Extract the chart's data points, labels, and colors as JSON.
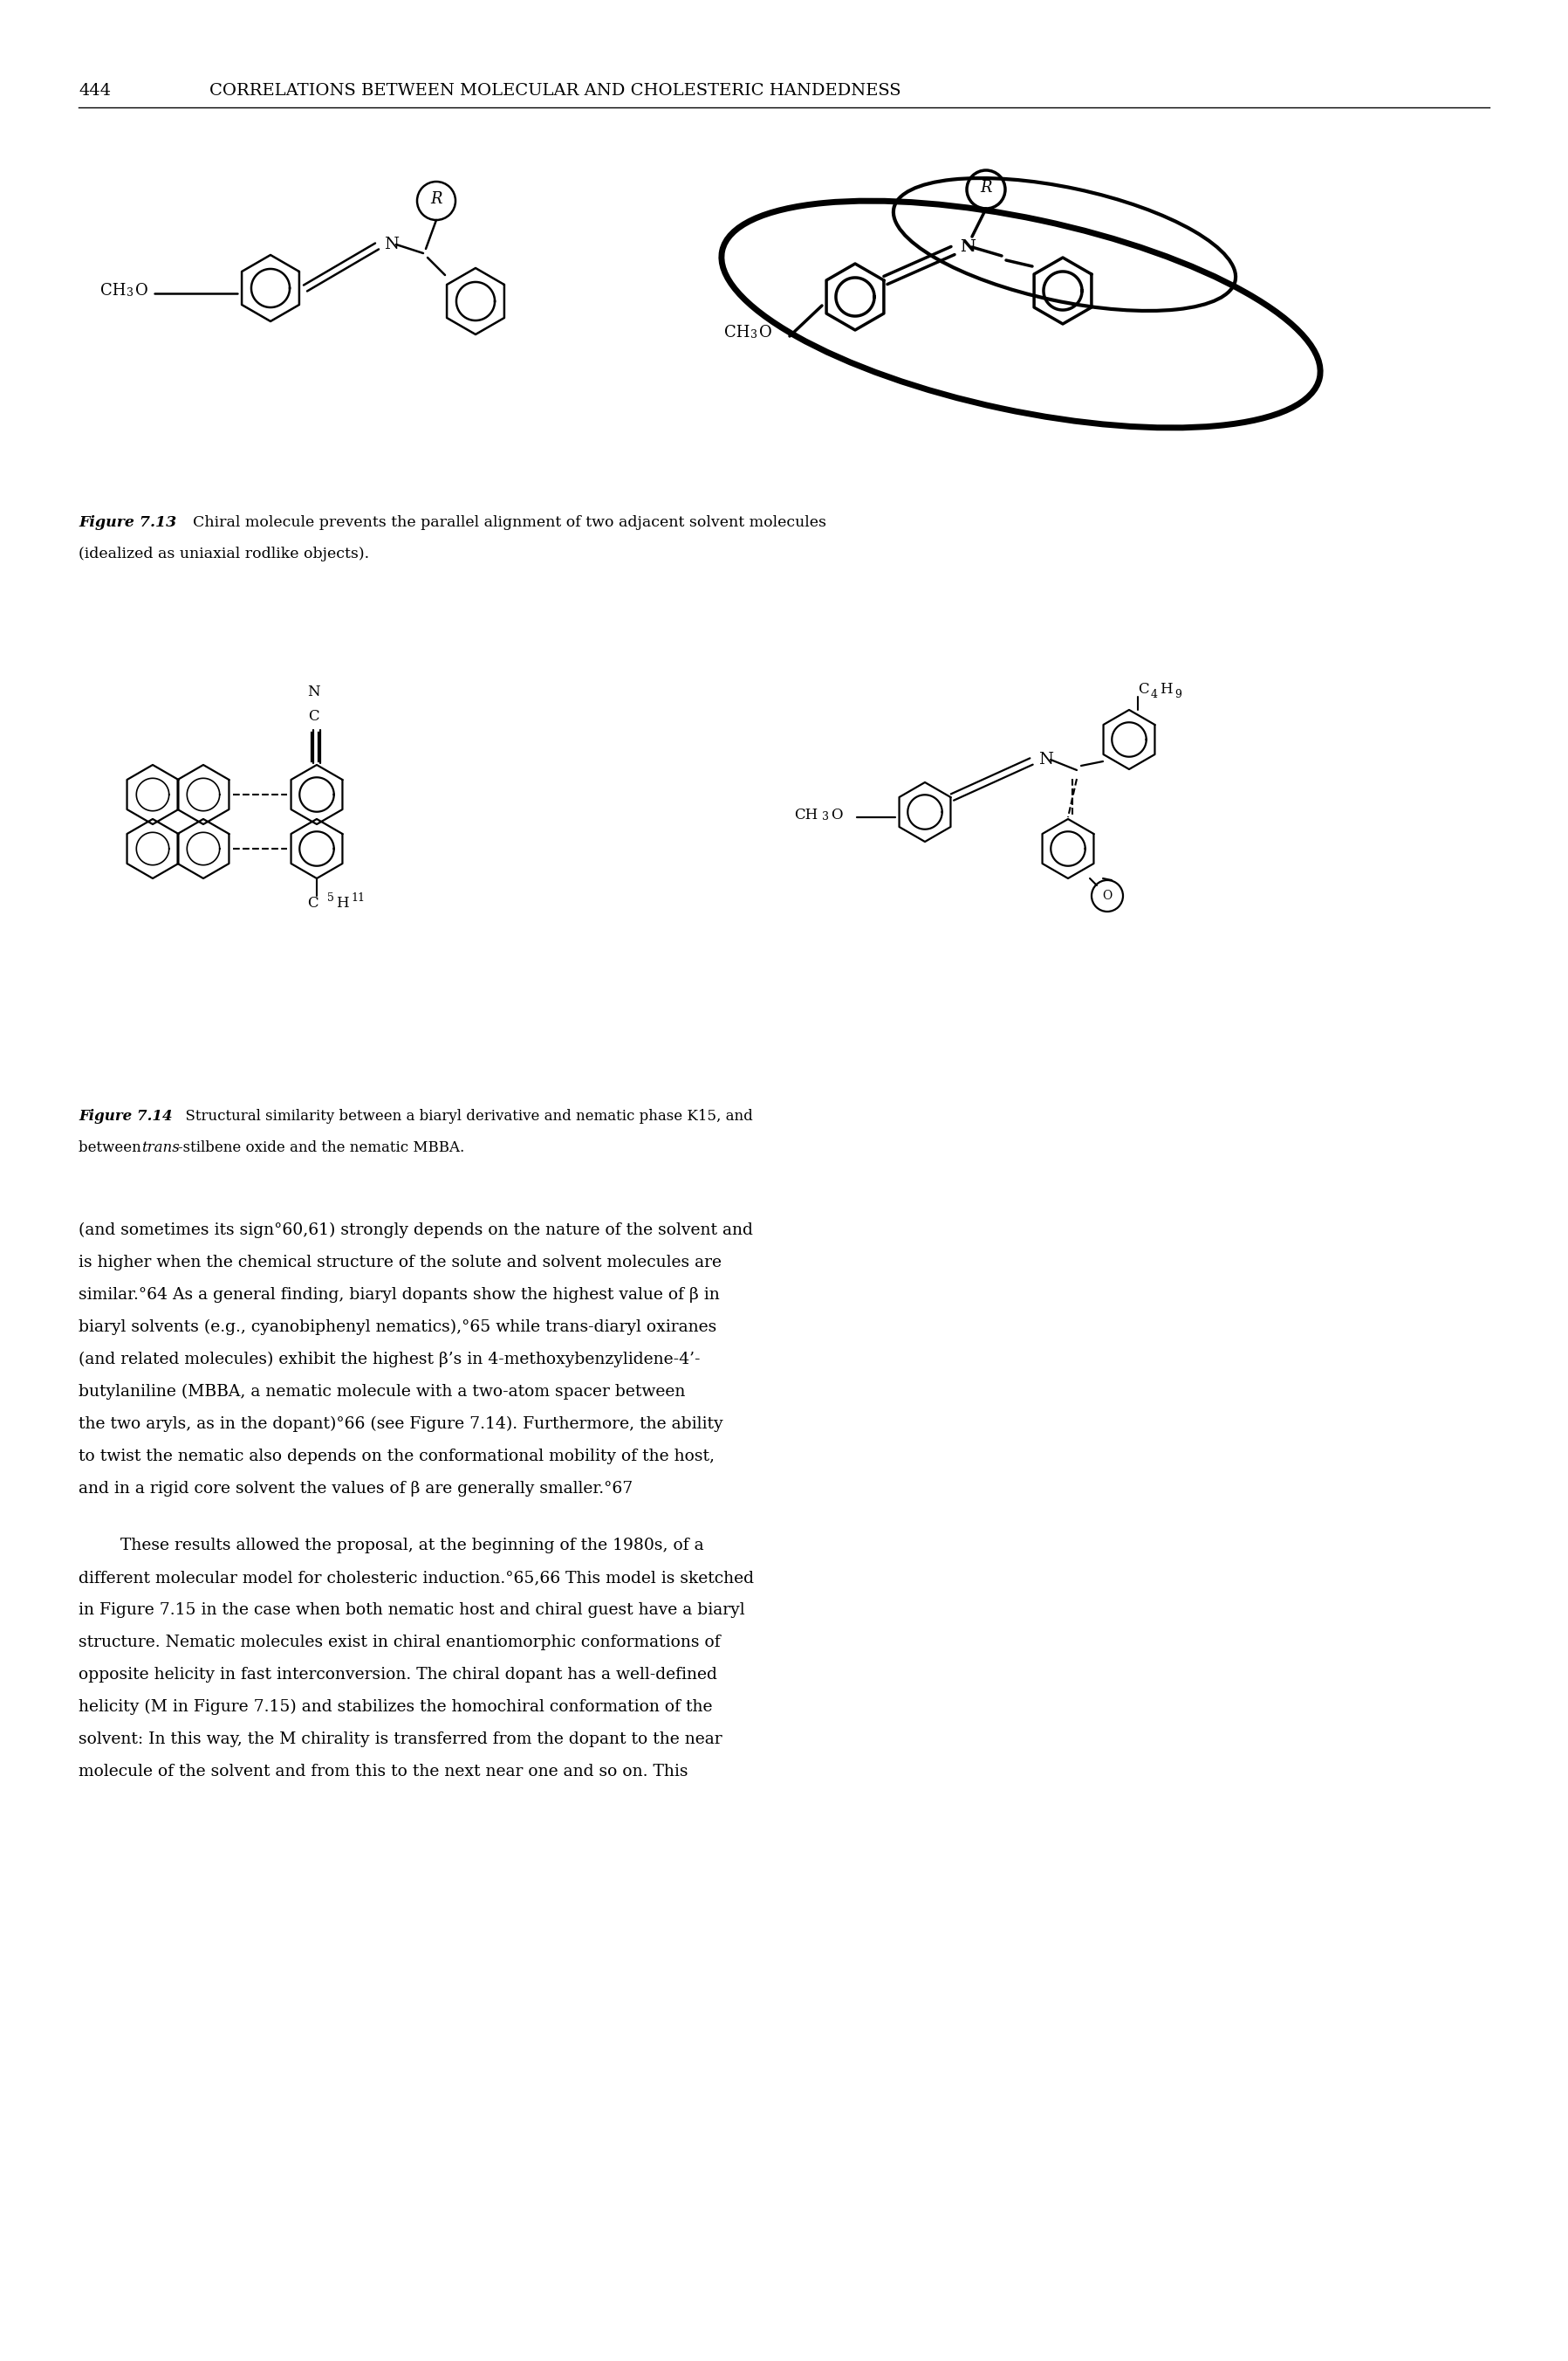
{
  "page_number": "444",
  "header": "CORRELATIONS BETWEEN MOLECULAR AND CHOLESTERIC HANDEDNESS",
  "fig13_caption_italic": "Figure 7.13",
  "fig13_caption_normal": "  Chiral molecule prevents the parallel alignment of two adjacent solvent molecules",
  "fig13_caption_line2": "(idealized as uniaxial rodlike objects).",
  "fig14_caption_italic": "Figure 7.14",
  "fig14_caption_normal": "  Structural similarity between a biaryl derivative and nematic phase K15, and",
  "fig14_caption_line2_pre": "between ",
  "fig14_caption_line2_italic": "trans",
  "fig14_caption_line2_post": "-stilbene oxide and the nematic MBBA.",
  "body_text_lines": [
    "(and sometimes its sign°60,61) strongly depends on the nature of the solvent and",
    "is higher when the chemical structure of the solute and solvent molecules are",
    "similar.°64 As a general finding, biaryl dopants show the highest value of β in",
    "biaryl solvents (e.g., cyanobiphenyl nematics),°65 while trans-diaryl oxiranes",
    "(and related molecules) exhibit the highest β’s in 4-methoxybenzylidene-4’-",
    "butylaniline (MBBA, a nematic molecule with a two-atom spacer between",
    "the two aryls, as in the dopant)°66 (see Figure 7.14). Furthermore, the ability",
    "to twist the nematic also depends on the conformational mobility of the host,",
    "and in a rigid core solvent the values of β are generally smaller.°67"
  ],
  "body_text_lines2": [
    "These results allowed the proposal, at the beginning of the 1980s, of a",
    "different molecular model for cholesteric induction.°65,66 This model is sketched",
    "in Figure 7.15 in the case when both nematic host and chiral guest have a biaryl",
    "structure. Nematic molecules exist in chiral enantiomorphic conformations of",
    "opposite helicity in fast interconversion. The chiral dopant has a well-defined",
    "helicity (M in Figure 7.15) and stabilizes the homochiral conformation of the",
    "solvent: In this way, the M chirality is transferred from the dopant to the near",
    "molecule of the solvent and from this to the next near one and so on. This"
  ],
  "background_color": "#ffffff",
  "text_color": "#000000"
}
